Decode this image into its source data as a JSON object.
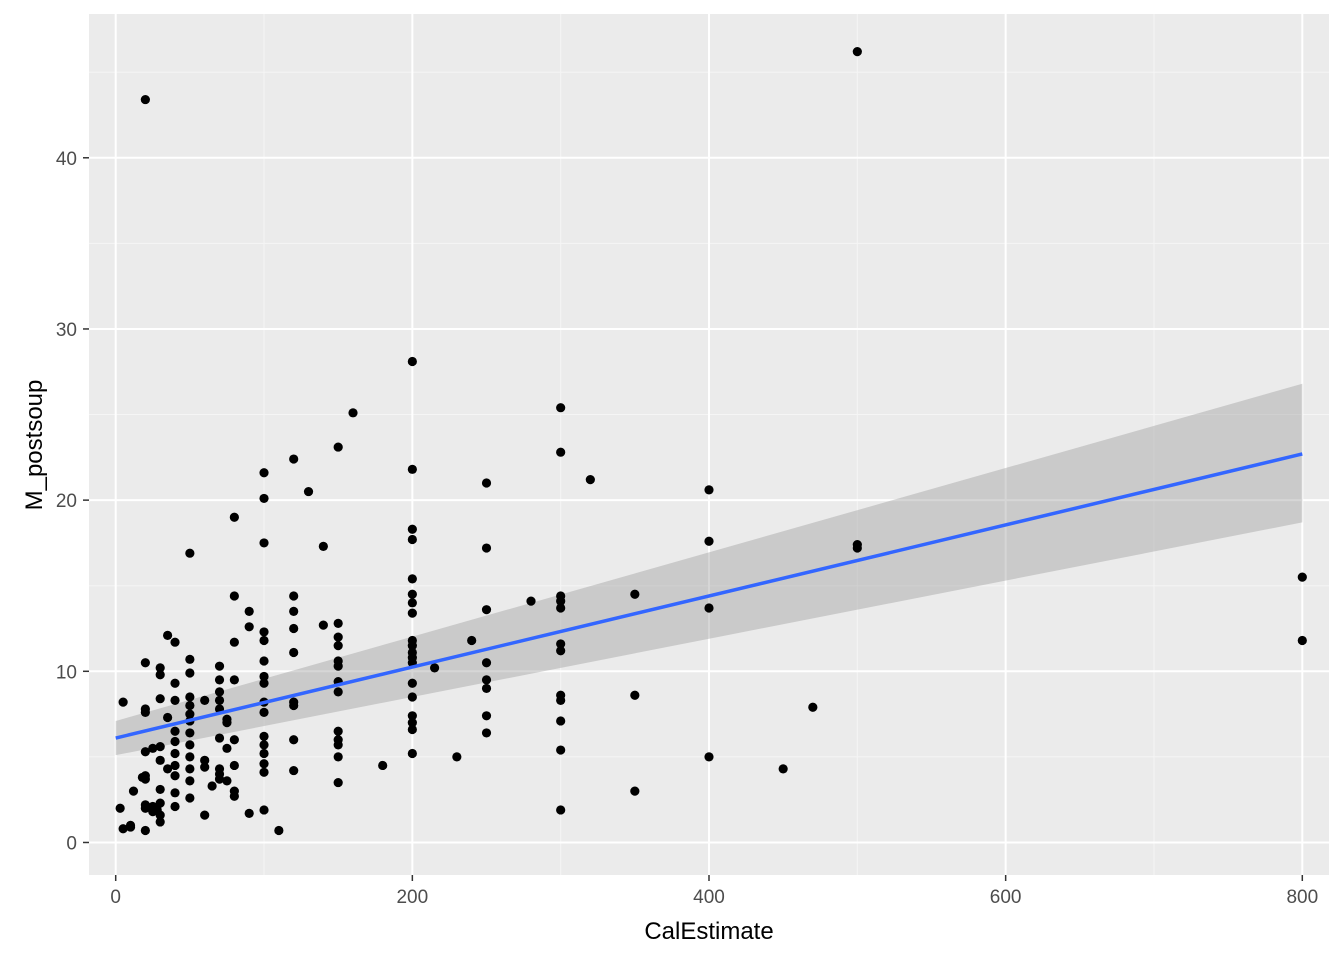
{
  "chart_data": {
    "type": "scatter",
    "title": "",
    "xlabel": "CalEstimate",
    "ylabel": "M_postsoup",
    "xlim": [
      -18,
      818
    ],
    "ylim": [
      -1.9,
      48.4
    ],
    "x_ticks": [
      0,
      200,
      400,
      600,
      800
    ],
    "y_ticks": [
      0,
      10,
      20,
      30,
      40
    ],
    "x_tick_labels": [
      "0",
      "200",
      "400",
      "600",
      "800"
    ],
    "y_tick_labels": [
      "0",
      "10",
      "20",
      "30",
      "40"
    ],
    "grid": true,
    "legend": "none",
    "colors": {
      "panel_background": "#ebebeb",
      "grid_major": "#ffffff",
      "grid_minor": "#f5f5f5",
      "points": "#000000",
      "fit_line": "#3366ff",
      "confidence_band": "#999999"
    },
    "fit": {
      "method": "linear",
      "x": [
        0,
        800
      ],
      "y": [
        6.1,
        22.7
      ],
      "ci_lower": [
        5.1,
        18.7
      ],
      "ci_upper": [
        7.1,
        26.8
      ]
    },
    "points": [
      [
        20,
        43.4
      ],
      [
        500,
        46.2
      ],
      [
        3,
        2.0
      ],
      [
        5,
        8.2
      ],
      [
        5,
        0.8
      ],
      [
        10,
        1.0
      ],
      [
        10,
        0.9
      ],
      [
        12,
        3.0
      ],
      [
        20,
        10.5
      ],
      [
        20,
        7.8
      ],
      [
        20,
        7.6
      ],
      [
        20,
        5.3
      ],
      [
        20,
        3.9
      ],
      [
        20,
        3.7
      ],
      [
        20,
        2.2
      ],
      [
        20,
        2.0
      ],
      [
        20,
        0.7
      ],
      [
        18,
        3.8
      ],
      [
        25,
        5.5
      ],
      [
        25,
        1.8
      ],
      [
        25,
        2.1
      ],
      [
        28,
        1.9
      ],
      [
        30,
        10.2
      ],
      [
        30,
        9.8
      ],
      [
        30,
        8.4
      ],
      [
        30,
        5.6
      ],
      [
        30,
        4.8
      ],
      [
        30,
        3.1
      ],
      [
        30,
        2.3
      ],
      [
        30,
        1.6
      ],
      [
        30,
        1.2
      ],
      [
        35,
        12.1
      ],
      [
        35,
        7.3
      ],
      [
        35,
        4.3
      ],
      [
        40,
        11.7
      ],
      [
        40,
        9.3
      ],
      [
        40,
        8.3
      ],
      [
        40,
        6.5
      ],
      [
        40,
        5.9
      ],
      [
        40,
        5.2
      ],
      [
        40,
        4.5
      ],
      [
        40,
        3.9
      ],
      [
        40,
        2.9
      ],
      [
        40,
        2.1
      ],
      [
        50,
        16.9
      ],
      [
        50,
        10.7
      ],
      [
        50,
        9.9
      ],
      [
        50,
        8.5
      ],
      [
        50,
        8.0
      ],
      [
        50,
        7.5
      ],
      [
        50,
        7.1
      ],
      [
        50,
        6.4
      ],
      [
        50,
        5.7
      ],
      [
        50,
        5.0
      ],
      [
        50,
        4.3
      ],
      [
        50,
        3.6
      ],
      [
        50,
        2.6
      ],
      [
        60,
        8.3
      ],
      [
        60,
        4.8
      ],
      [
        60,
        4.4
      ],
      [
        60,
        1.6
      ],
      [
        65,
        3.3
      ],
      [
        70,
        10.3
      ],
      [
        70,
        9.5
      ],
      [
        70,
        8.8
      ],
      [
        70,
        8.3
      ],
      [
        70,
        7.8
      ],
      [
        70,
        6.1
      ],
      [
        70,
        4.3
      ],
      [
        70,
        4.0
      ],
      [
        70,
        3.7
      ],
      [
        75,
        7.2
      ],
      [
        75,
        7.0
      ],
      [
        75,
        5.5
      ],
      [
        75,
        3.6
      ],
      [
        80,
        19.0
      ],
      [
        80,
        14.4
      ],
      [
        80,
        11.7
      ],
      [
        80,
        9.5
      ],
      [
        80,
        6.0
      ],
      [
        80,
        4.5
      ],
      [
        80,
        3.0
      ],
      [
        80,
        2.7
      ],
      [
        90,
        13.5
      ],
      [
        90,
        12.6
      ],
      [
        90,
        1.7
      ],
      [
        100,
        21.6
      ],
      [
        100,
        20.1
      ],
      [
        100,
        17.5
      ],
      [
        100,
        12.3
      ],
      [
        100,
        11.8
      ],
      [
        100,
        10.6
      ],
      [
        100,
        9.7
      ],
      [
        100,
        9.3
      ],
      [
        100,
        8.2
      ],
      [
        100,
        7.6
      ],
      [
        100,
        6.2
      ],
      [
        100,
        5.7
      ],
      [
        100,
        5.2
      ],
      [
        100,
        4.6
      ],
      [
        100,
        4.1
      ],
      [
        100,
        1.9
      ],
      [
        110,
        0.7
      ],
      [
        120,
        22.4
      ],
      [
        120,
        14.4
      ],
      [
        120,
        13.5
      ],
      [
        120,
        12.5
      ],
      [
        120,
        11.1
      ],
      [
        120,
        8.2
      ],
      [
        120,
        8.0
      ],
      [
        120,
        6.0
      ],
      [
        120,
        4.2
      ],
      [
        130,
        20.5
      ],
      [
        140,
        17.3
      ],
      [
        140,
        12.7
      ],
      [
        150,
        23.1
      ],
      [
        150,
        12.8
      ],
      [
        150,
        12.0
      ],
      [
        150,
        11.5
      ],
      [
        150,
        10.6
      ],
      [
        150,
        10.3
      ],
      [
        150,
        9.4
      ],
      [
        150,
        8.8
      ],
      [
        150,
        6.5
      ],
      [
        150,
        6.0
      ],
      [
        150,
        5.7
      ],
      [
        150,
        5.0
      ],
      [
        150,
        3.5
      ],
      [
        160,
        25.1
      ],
      [
        180,
        4.5
      ],
      [
        200,
        28.1
      ],
      [
        200,
        21.8
      ],
      [
        200,
        18.3
      ],
      [
        200,
        17.7
      ],
      [
        200,
        15.4
      ],
      [
        200,
        14.5
      ],
      [
        200,
        14.0
      ],
      [
        200,
        13.4
      ],
      [
        200,
        11.8
      ],
      [
        200,
        11.5
      ],
      [
        200,
        11.1
      ],
      [
        200,
        10.8
      ],
      [
        200,
        10.5
      ],
      [
        200,
        9.3
      ],
      [
        200,
        8.5
      ],
      [
        200,
        7.4
      ],
      [
        200,
        7.0
      ],
      [
        200,
        6.6
      ],
      [
        200,
        5.2
      ],
      [
        215,
        10.2
      ],
      [
        230,
        5.0
      ],
      [
        240,
        11.8
      ],
      [
        250,
        21.0
      ],
      [
        250,
        17.2
      ],
      [
        250,
        13.6
      ],
      [
        250,
        10.5
      ],
      [
        250,
        9.5
      ],
      [
        250,
        9.0
      ],
      [
        250,
        7.4
      ],
      [
        250,
        6.4
      ],
      [
        280,
        14.1
      ],
      [
        300,
        25.4
      ],
      [
        300,
        22.8
      ],
      [
        300,
        14.4
      ],
      [
        300,
        14.1
      ],
      [
        300,
        13.7
      ],
      [
        300,
        11.6
      ],
      [
        300,
        11.2
      ],
      [
        300,
        8.6
      ],
      [
        300,
        8.3
      ],
      [
        300,
        7.1
      ],
      [
        300,
        5.4
      ],
      [
        300,
        1.9
      ],
      [
        320,
        21.2
      ],
      [
        350,
        14.5
      ],
      [
        350,
        8.6
      ],
      [
        350,
        3.0
      ],
      [
        400,
        20.6
      ],
      [
        400,
        17.6
      ],
      [
        400,
        13.7
      ],
      [
        400,
        5.0
      ],
      [
        450,
        4.3
      ],
      [
        470,
        7.9
      ],
      [
        500,
        17.4
      ],
      [
        500,
        17.2
      ],
      [
        800,
        15.5
      ],
      [
        800,
        11.8
      ]
    ]
  }
}
